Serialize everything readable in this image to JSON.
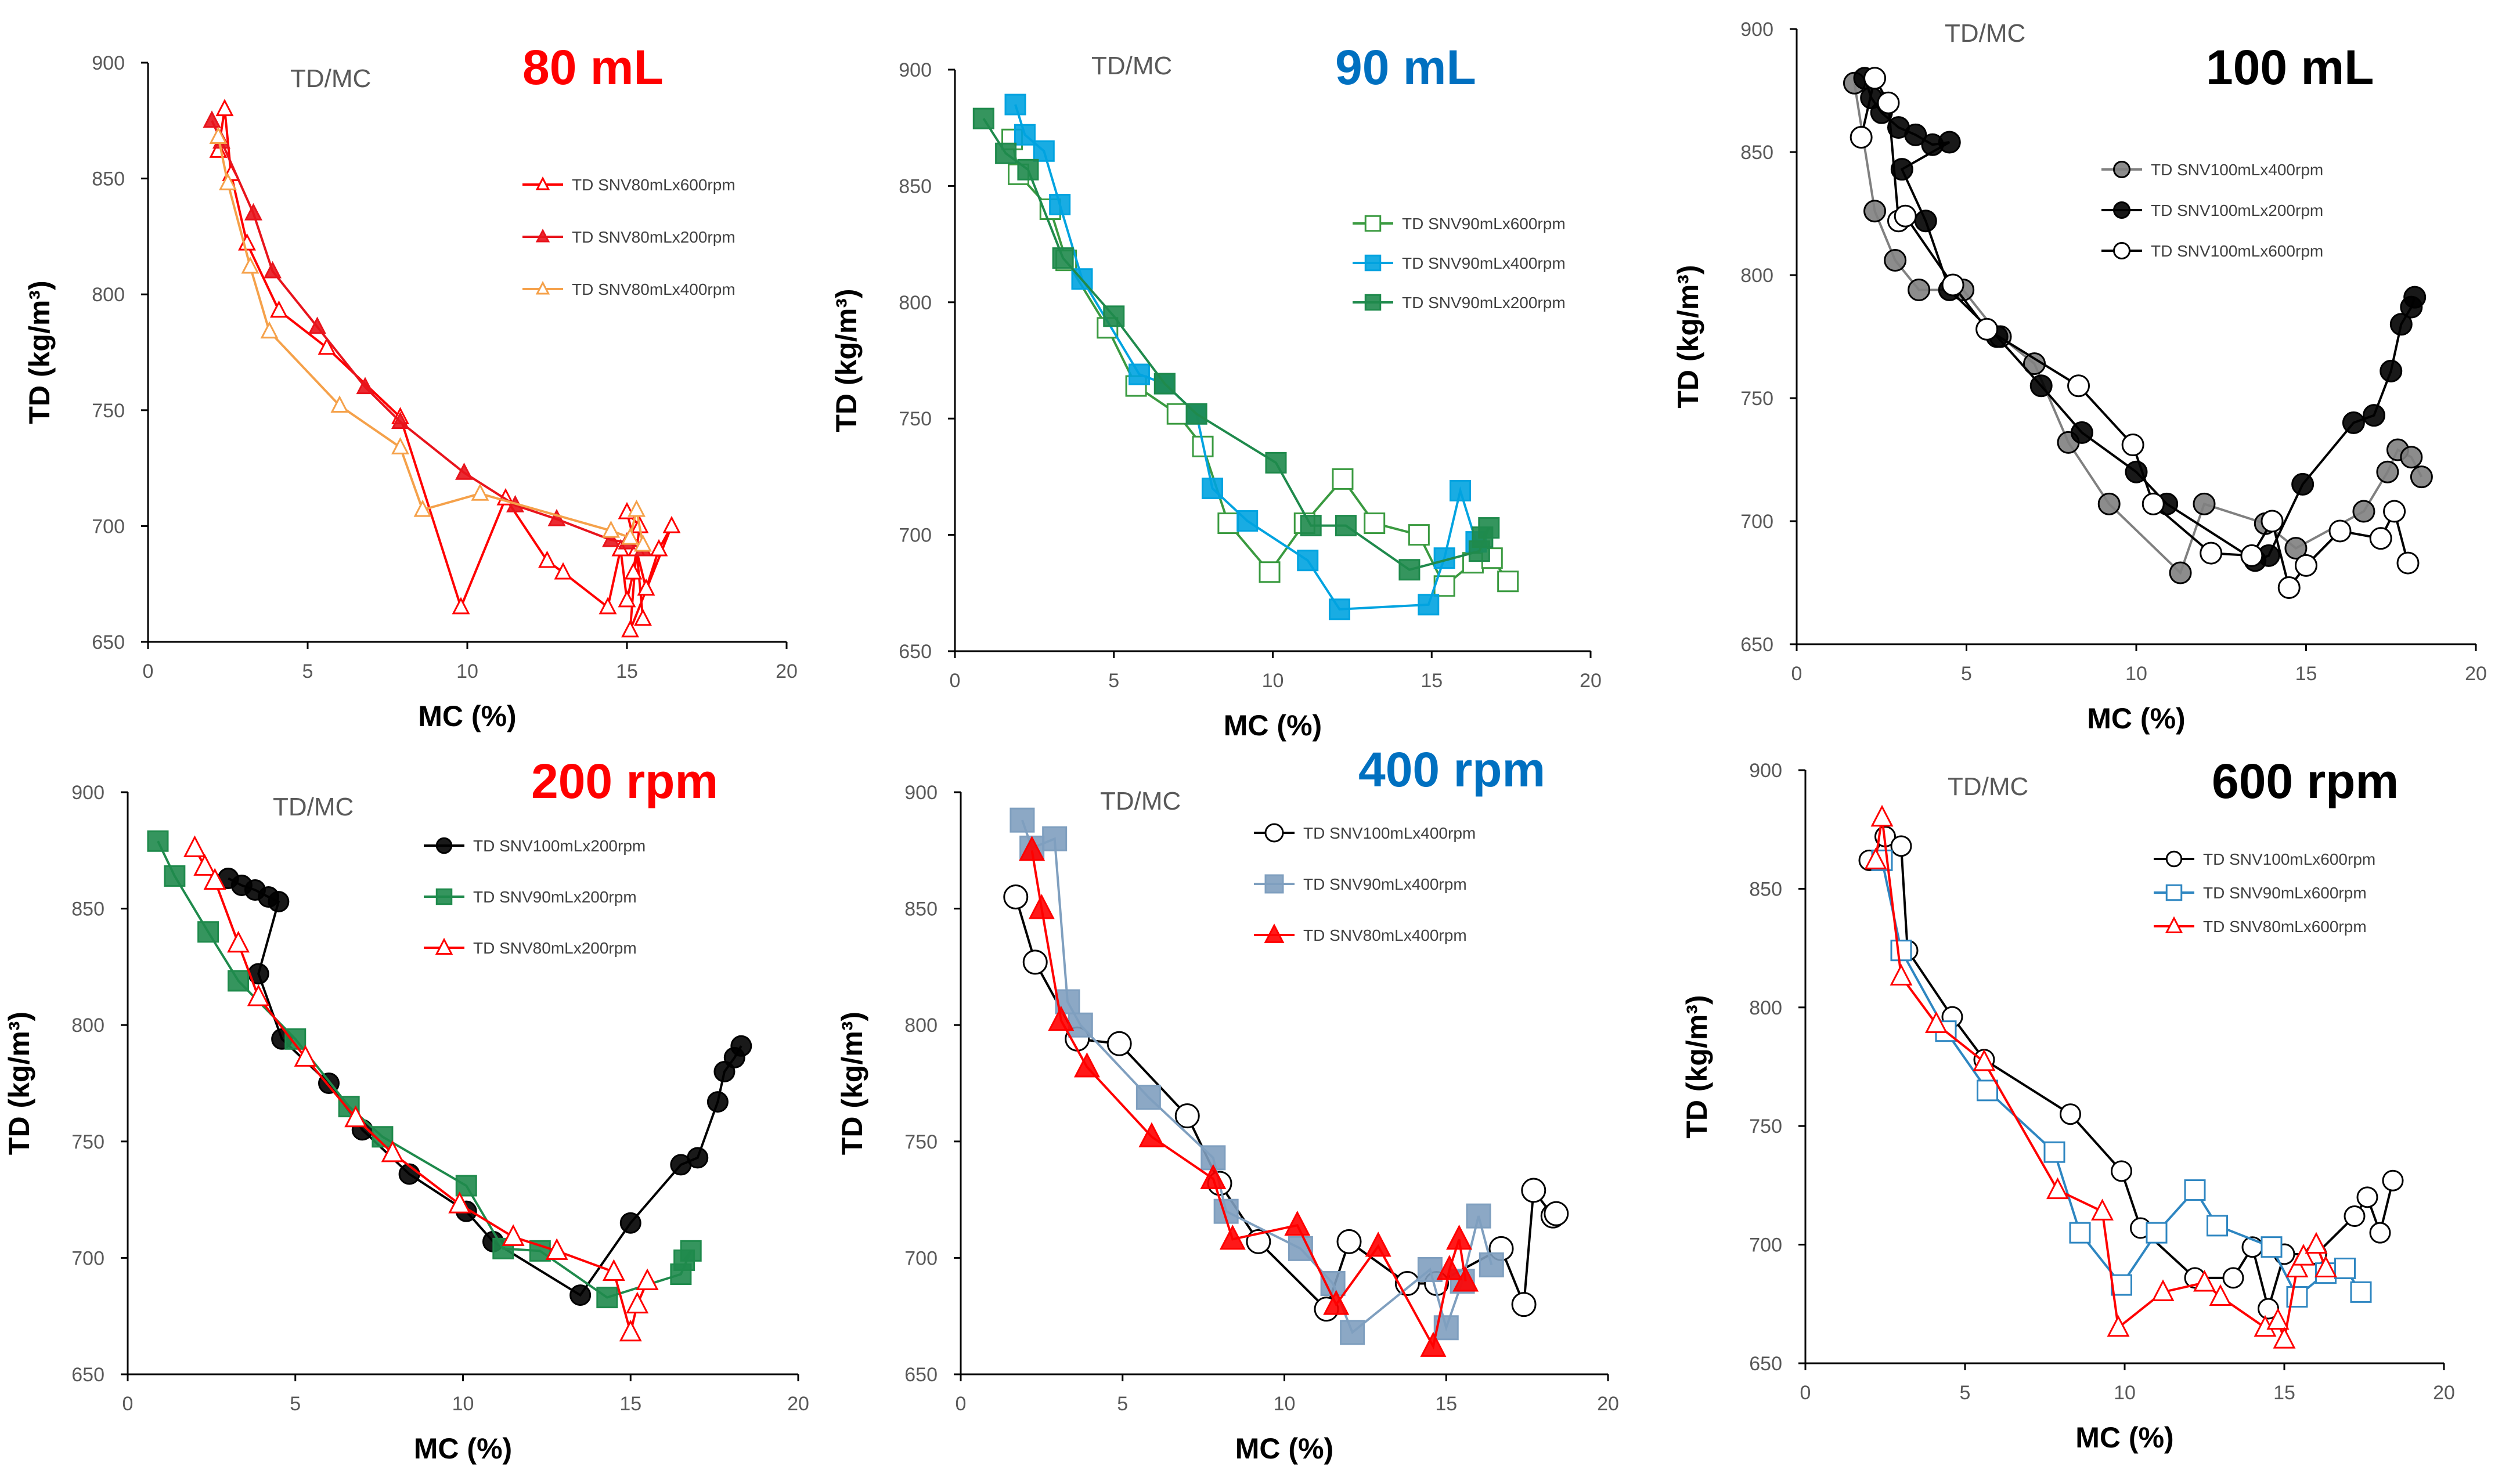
{
  "chart_data": [
    {
      "type": "scatter",
      "label": "TD/MC",
      "title": "80 mL",
      "title_color": "#ff0000",
      "xlabel": "MC (%)",
      "ylabel": "TD (kg/m³)",
      "xlim": [
        0,
        20
      ],
      "ylim": [
        650,
        900
      ],
      "xticks": [
        0,
        5,
        10,
        15,
        20
      ],
      "yticks": [
        650,
        700,
        750,
        800,
        850,
        900
      ],
      "series": [
        {
          "name": "TD SNV80mLx600rpm",
          "color": "#ff0000",
          "marker": "triangle",
          "filled": false,
          "x": [
            2.2,
            2.4,
            2.6,
            3.1,
            4.1,
            5.6,
            7.9,
            9.8,
            11.2,
            12.5,
            13.0,
            14.4,
            14.8,
            15.0,
            15.2,
            15.4,
            15.0,
            15.6,
            16.0,
            16.4,
            15.1,
            15.3,
            15.5
          ],
          "y": [
            862,
            880,
            852,
            822,
            793,
            777,
            747,
            665,
            712,
            685,
            680,
            665,
            690,
            668,
            680,
            700,
            706,
            673,
            690,
            700,
            655,
            690,
            660
          ]
        },
        {
          "name": "TD SNV80mLx200rpm",
          "color": "#e8141c",
          "marker": "triangle",
          "filled": true,
          "x": [
            2.0,
            2.3,
            3.3,
            3.9,
            5.3,
            6.8,
            7.9,
            9.9,
            11.5,
            12.8,
            14.5,
            15.0,
            15.5
          ],
          "y": [
            875,
            866,
            835,
            810,
            786,
            760,
            745,
            723,
            709,
            703,
            694,
            693,
            690
          ]
        },
        {
          "name": "TD SNV80mLx400rpm",
          "color": "#f5a14a",
          "marker": "triangle",
          "filled": false,
          "x": [
            2.2,
            2.5,
            3.2,
            3.8,
            6.0,
            7.9,
            8.6,
            10.4,
            14.5,
            15.1,
            15.3,
            15.5
          ],
          "y": [
            868,
            848,
            812,
            784,
            752,
            734,
            707,
            714,
            698,
            695,
            707,
            692
          ]
        }
      ]
    },
    {
      "type": "scatter",
      "label": "TD/MC",
      "title": "90 mL",
      "title_color": "#0070c0",
      "xlabel": "MC (%)",
      "ylabel": "TD (kg/m³)",
      "xlim": [
        0,
        20
      ],
      "ylim": [
        650,
        900
      ],
      "xticks": [
        0,
        5,
        10,
        15,
        20
      ],
      "yticks": [
        650,
        700,
        750,
        800,
        850,
        900
      ],
      "series": [
        {
          "name": "TD SNV90mLx600rpm",
          "color": "#3a9a40",
          "marker": "square",
          "filled": false,
          "x": [
            1.8,
            2.0,
            3.0,
            3.5,
            4.8,
            5.7,
            7.0,
            7.8,
            8.6,
            9.9,
            11.0,
            12.2,
            13.2,
            14.6,
            15.4,
            16.3,
            16.9,
            17.4
          ],
          "y": [
            870,
            855,
            840,
            818,
            789,
            764,
            752,
            738,
            705,
            684,
            705,
            724,
            705,
            700,
            678,
            688,
            690,
            680
          ]
        },
        {
          "name": "TD SNV90mLx400rpm",
          "color": "#00a3e0",
          "marker": "square",
          "filled": true,
          "x": [
            1.9,
            2.2,
            2.8,
            3.3,
            4.0,
            5.8,
            6.6,
            7.6,
            8.1,
            9.2,
            11.1,
            12.1,
            14.9,
            15.4,
            15.9,
            16.4
          ],
          "y": [
            885,
            872,
            865,
            842,
            810,
            769,
            765,
            752,
            720,
            706,
            689,
            668,
            670,
            690,
            719,
            697
          ]
        },
        {
          "name": "TD SNV90mLx200rpm",
          "color": "#1f8a4c",
          "marker": "square",
          "filled": true,
          "x": [
            0.9,
            1.6,
            2.3,
            3.4,
            5.0,
            6.6,
            7.6,
            10.1,
            11.2,
            12.3,
            14.3,
            16.5,
            16.8,
            16.6
          ],
          "y": [
            879,
            864,
            857,
            819,
            794,
            765,
            752,
            731,
            704,
            704,
            685,
            693,
            703,
            699
          ]
        }
      ]
    },
    {
      "type": "scatter",
      "label": "TD/MC",
      "title": "100 mL",
      "title_color": "#000000",
      "xlabel": "MC (%)",
      "ylabel": "TD (kg/m³)",
      "xlim": [
        0,
        20
      ],
      "ylim": [
        650,
        900
      ],
      "xticks": [
        0,
        5,
        10,
        15,
        20
      ],
      "yticks": [
        650,
        700,
        750,
        800,
        850,
        900
      ],
      "series": [
        {
          "name": "TD SNV100mLx400rpm",
          "color": "#808080",
          "marker": "circle",
          "filled": true,
          "x": [
            1.7,
            2.3,
            2.9,
            3.6,
            4.9,
            6.0,
            7.0,
            8.0,
            9.2,
            11.3,
            12.0,
            13.8,
            14.7,
            16.7,
            17.4,
            17.7,
            18.1,
            18.4
          ],
          "y": [
            878,
            826,
            806,
            794,
            794,
            775,
            764,
            732,
            707,
            679,
            707,
            699,
            689,
            704,
            720,
            729,
            726,
            718
          ]
        },
        {
          "name": "TD SNV100mLx200rpm",
          "color": "#000000",
          "marker": "circle",
          "filled": true,
          "x": [
            2.0,
            2.2,
            2.5,
            3.0,
            3.5,
            4.0,
            4.5,
            3.1,
            3.8,
            4.5,
            5.9,
            7.2,
            8.4,
            10.0,
            10.9,
            13.5,
            13.9,
            14.9,
            16.4,
            17.0,
            17.5,
            17.8,
            18.1,
            18.2
          ],
          "y": [
            880,
            872,
            866,
            860,
            857,
            853,
            854,
            843,
            822,
            794,
            775,
            755,
            736,
            720,
            707,
            684,
            686,
            715,
            740,
            743,
            761,
            780,
            787,
            791
          ]
        },
        {
          "name": "TD SNV100mLx600rpm",
          "color": "#000000",
          "marker": "circle",
          "filled": false,
          "x": [
            1.9,
            2.3,
            2.7,
            3.0,
            3.2,
            4.6,
            5.6,
            8.3,
            9.9,
            10.5,
            12.2,
            13.4,
            14.0,
            14.5,
            15.0,
            16.0,
            17.2,
            17.6,
            18.0
          ],
          "y": [
            856,
            880,
            870,
            822,
            824,
            796,
            778,
            755,
            731,
            707,
            687,
            686,
            700,
            673,
            682,
            696,
            693,
            704,
            683
          ]
        }
      ]
    },
    {
      "type": "scatter",
      "label": "TD/MC",
      "title": "200 rpm",
      "title_color": "#ff0000",
      "xlabel": "MC (%)",
      "ylabel": "TD (kg/m³)",
      "xlim": [
        0,
        20
      ],
      "ylim": [
        650,
        900
      ],
      "xticks": [
        0,
        5,
        10,
        15,
        20
      ],
      "yticks": [
        650,
        700,
        750,
        800,
        850,
        900
      ],
      "series": [
        {
          "name": "TD SNV100mLx200rpm",
          "color": "#000000",
          "marker": "circle",
          "filled": true,
          "x": [
            3.0,
            3.4,
            3.8,
            4.2,
            4.5,
            3.9,
            4.6,
            6.0,
            7.0,
            8.4,
            10.1,
            10.9,
            13.5,
            15.0,
            16.5,
            17.0,
            17.6,
            17.8,
            18.1,
            18.3
          ],
          "y": [
            863,
            860,
            858,
            855,
            853,
            822,
            794,
            775,
            755,
            736,
            720,
            707,
            684,
            715,
            740,
            743,
            767,
            780,
            786,
            791
          ]
        },
        {
          "name": "TD SNV90mLx200rpm",
          "color": "#1f8a4c",
          "marker": "square",
          "filled": true,
          "x": [
            0.9,
            1.4,
            2.4,
            3.3,
            5.0,
            6.6,
            7.6,
            10.1,
            11.2,
            12.3,
            14.3,
            16.5,
            16.8,
            16.6
          ],
          "y": [
            879,
            864,
            840,
            819,
            794,
            765,
            752,
            731,
            704,
            703,
            683,
            693,
            703,
            699
          ]
        },
        {
          "name": "TD SNV80mLx200rpm",
          "color": "#ff0000",
          "marker": "triangle",
          "filled": false,
          "x": [
            2.0,
            2.3,
            2.6,
            3.3,
            3.9,
            5.3,
            6.8,
            7.9,
            9.9,
            11.5,
            12.8,
            14.5,
            15.0,
            15.2,
            15.5
          ],
          "y": [
            876,
            868,
            862,
            835,
            812,
            786,
            760,
            745,
            723,
            709,
            703,
            694,
            668,
            680,
            690
          ]
        }
      ]
    },
    {
      "type": "scatter",
      "label": "TD/MC",
      "title": "400 rpm",
      "title_color": "#0070c0",
      "xlabel": "MC (%)",
      "ylabel": "TD (kg/m³)",
      "xlim": [
        0,
        20
      ],
      "ylim": [
        650,
        900
      ],
      "xticks": [
        0,
        5,
        10,
        15,
        20
      ],
      "yticks": [
        650,
        700,
        750,
        800,
        850,
        900
      ],
      "series": [
        {
          "name": "TD SNV100mLx400rpm",
          "color": "#000000",
          "marker": "circle",
          "filled": false,
          "x": [
            1.7,
            2.3,
            3.6,
            4.9,
            7.0,
            8.0,
            9.2,
            11.3,
            12.0,
            13.8,
            14.7,
            16.7,
            17.4,
            17.7,
            18.3,
            18.4
          ],
          "y": [
            855,
            827,
            794,
            792,
            761,
            732,
            707,
            678,
            707,
            689,
            689,
            704,
            680,
            729,
            718,
            719
          ]
        },
        {
          "name": "TD SNV90mLx400rpm",
          "color": "#7f9fbf",
          "marker": "square",
          "filled": true,
          "x": [
            1.9,
            2.2,
            2.9,
            3.3,
            3.7,
            5.8,
            7.8,
            8.2,
            10.5,
            11.5,
            12.1,
            14.5,
            15.0,
            15.5,
            16.0,
            16.4
          ],
          "y": [
            888,
            876,
            880,
            810,
            800,
            769,
            743,
            720,
            704,
            689,
            668,
            695,
            670,
            690,
            718,
            697
          ]
        },
        {
          "name": "TD SNV80mLx400rpm",
          "color": "#ff0000",
          "marker": "triangle",
          "filled": true,
          "x": [
            2.2,
            2.5,
            3.1,
            3.9,
            5.9,
            7.8,
            8.4,
            10.4,
            11.6,
            12.9,
            14.6,
            15.1,
            15.4,
            15.6
          ],
          "y": [
            875,
            850,
            802,
            782,
            752,
            734,
            708,
            714,
            680,
            705,
            662,
            695,
            708,
            690
          ]
        }
      ]
    },
    {
      "type": "scatter",
      "label": "TD/MC",
      "title": "600 rpm",
      "title_color": "#000000",
      "xlabel": "MC (%)",
      "ylabel": "TD (kg/m³)",
      "xlim": [
        0,
        20
      ],
      "ylim": [
        650,
        900
      ],
      "xticks": [
        0,
        5,
        10,
        15,
        20
      ],
      "yticks": [
        650,
        700,
        750,
        800,
        850,
        900
      ],
      "series": [
        {
          "name": "TD SNV100mLx600rpm",
          "color": "#000000",
          "marker": "circle",
          "filled": false,
          "x": [
            2.0,
            2.5,
            3.0,
            3.2,
            4.6,
            5.6,
            8.3,
            9.9,
            10.5,
            12.2,
            13.4,
            14.0,
            14.5,
            15.0,
            16.0,
            17.2,
            17.6,
            18.0,
            18.4
          ],
          "y": [
            862,
            872,
            868,
            824,
            796,
            778,
            755,
            731,
            707,
            686,
            686,
            699,
            673,
            696,
            696,
            712,
            720,
            705,
            727
          ]
        },
        {
          "name": "TD SNV90mLx600rpm",
          "color": "#2e86c1",
          "marker": "square",
          "filled": false,
          "x": [
            2.4,
            3.0,
            4.4,
            5.7,
            7.8,
            8.6,
            9.9,
            11.0,
            12.2,
            12.9,
            14.6,
            15.4,
            16.3,
            16.9,
            17.4
          ],
          "y": [
            862,
            824,
            790,
            765,
            739,
            705,
            683,
            705,
            723,
            708,
            699,
            678,
            688,
            690,
            680
          ]
        },
        {
          "name": "TD SNV80mLx600rpm",
          "color": "#ff0000",
          "marker": "triangle",
          "filled": false,
          "x": [
            2.2,
            2.4,
            3.0,
            4.1,
            5.6,
            7.9,
            9.3,
            9.8,
            11.2,
            12.5,
            13.0,
            14.4,
            14.8,
            15.0,
            15.4,
            15.6,
            16.0,
            16.3
          ],
          "y": [
            862,
            880,
            813,
            793,
            777,
            723,
            714,
            665,
            680,
            684,
            678,
            665,
            668,
            660,
            690,
            695,
            700,
            690
          ]
        }
      ]
    }
  ]
}
